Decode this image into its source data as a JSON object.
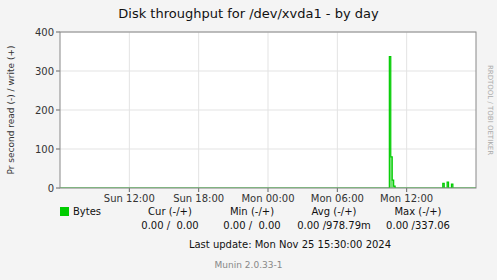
{
  "chart_data": {
    "type": "area",
    "title": "Disk throughput for /dev/xvda1 - by day",
    "y_label": "Pr second read (-) / write (+)",
    "x": [
      0,
      1,
      2,
      3,
      4,
      5,
      6,
      7,
      8,
      9,
      10,
      11,
      12,
      13,
      14,
      15,
      16,
      17,
      18,
      19,
      20,
      21,
      22,
      23,
      24,
      25,
      26,
      27,
      28,
      29,
      30,
      31,
      32,
      33,
      34,
      35,
      36,
      37,
      38,
      39,
      40,
      41,
      42,
      43,
      44,
      45,
      46,
      47,
      48,
      49,
      50,
      51,
      52,
      53,
      54,
      55,
      56,
      57,
      58,
      59,
      60,
      61,
      62,
      63,
      64,
      65,
      66,
      67,
      68,
      69,
      70,
      71,
      72,
      73,
      74,
      75,
      76,
      77,
      78,
      79,
      80,
      81,
      82,
      83,
      84,
      85,
      86,
      87,
      88,
      89,
      90,
      91,
      92,
      93,
      94,
      95,
      96,
      97,
      98,
      99,
      100,
      101,
      102,
      103,
      104,
      105,
      106,
      107,
      108,
      109,
      110,
      111,
      112,
      113,
      114,
      115,
      116,
      117,
      118,
      119,
      120,
      121,
      122,
      123,
      124,
      125,
      126,
      127,
      128,
      129,
      130,
      131,
      132,
      133,
      134,
      135,
      136,
      137,
      138,
      139,
      140,
      141,
      142,
      143,
      144,
      145,
      146,
      147,
      148,
      149,
      150,
      151,
      152,
      153,
      154,
      155,
      156,
      157,
      158,
      159,
      160,
      161,
      162,
      163,
      164,
      165,
      166,
      167,
      168,
      169,
      170,
      171,
      172,
      173,
      174,
      175,
      176,
      177,
      178,
      179,
      180,
      181,
      182,
      183,
      184,
      185,
      186,
      187,
      188,
      189,
      190,
      191,
      192,
      193,
      194,
      195,
      196,
      197,
      198,
      199,
      200,
      201,
      202,
      203,
      204,
      205,
      206,
      207,
      208,
      209,
      210,
      211,
      212,
      213,
      214,
      215,
      216,
      217,
      218,
      219,
      220,
      221,
      222,
      223,
      224,
      225,
      226,
      227,
      228,
      229,
      230,
      231,
      232,
      233,
      234,
      235,
      236,
      237,
      238,
      239,
      240,
      241,
      242,
      243,
      244,
      245,
      246,
      247,
      248,
      249,
      250,
      251,
      252,
      253,
      254,
      255,
      256,
      257,
      258,
      259,
      260,
      261,
      262,
      263,
      264,
      265,
      266,
      267,
      268,
      269,
      270,
      271,
      272,
      273,
      274,
      275,
      276,
      277,
      278,
      279,
      280,
      281,
      282,
      283,
      284,
      285,
      286,
      287,
      288
    ],
    "series": [
      {
        "name": "Bytes",
        "color": "#00CC00",
        "values": [
          0,
          0,
          0,
          0,
          0,
          0,
          0,
          0,
          0,
          0,
          0,
          0,
          0,
          0,
          0,
          0,
          0,
          0,
          0,
          0,
          0,
          0,
          0,
          0,
          0,
          0,
          0,
          0,
          0,
          0,
          0,
          0,
          0,
          0,
          0,
          0,
          0,
          0,
          0,
          0,
          0,
          0,
          0,
          0,
          0,
          0,
          0,
          0,
          0,
          0,
          0,
          0,
          0,
          0,
          0,
          0,
          0,
          0,
          0,
          0,
          0,
          0,
          0,
          0,
          0,
          0,
          0,
          0,
          0,
          0,
          0,
          0,
          0,
          0,
          0,
          0,
          0,
          0,
          0,
          0,
          0,
          0,
          0,
          0,
          0,
          0,
          0,
          0,
          0,
          0,
          0,
          0,
          0,
          0,
          0,
          0,
          0,
          0,
          0,
          0,
          0,
          0,
          0,
          0,
          0,
          0,
          0,
          0,
          0,
          0,
          0,
          0,
          0,
          0,
          0,
          0,
          0,
          0,
          0,
          0,
          0,
          0,
          0,
          0,
          0,
          0,
          0,
          0,
          0,
          0,
          0,
          0,
          0,
          0,
          0,
          0,
          0,
          0,
          0,
          0,
          0,
          0,
          0,
          0,
          0,
          0,
          0,
          0,
          0,
          0,
          0,
          0,
          0,
          0,
          0,
          0,
          0,
          0,
          0,
          0,
          0,
          0,
          0,
          0,
          0,
          0,
          0,
          0,
          0,
          0,
          0,
          0,
          0,
          0,
          0,
          0,
          0,
          0,
          0,
          0,
          0,
          0,
          0,
          0,
          0,
          0,
          0,
          0,
          0,
          0,
          0,
          0,
          0,
          0,
          0,
          0,
          0,
          0,
          0,
          0,
          0,
          0,
          0,
          0,
          0,
          0,
          0,
          0,
          0,
          0,
          0,
          0,
          0,
          0,
          0,
          0,
          0,
          0,
          0,
          0,
          0,
          0,
          0,
          0,
          0,
          0,
          0,
          0,
          337,
          80,
          20,
          5,
          0,
          0,
          0,
          0,
          0,
          0,
          0,
          0,
          0,
          0,
          0,
          0,
          0,
          0,
          0,
          0,
          0,
          0,
          0,
          0,
          0,
          0,
          0,
          0,
          0,
          0,
          0,
          0,
          0,
          0,
          0,
          0,
          0,
          12,
          0,
          0,
          15,
          0,
          0,
          10,
          0,
          0,
          0,
          0,
          0,
          0,
          0,
          0,
          0,
          0,
          0,
          0,
          0,
          0,
          0,
          0,
          0
        ]
      }
    ],
    "xlim": [
      0,
      288
    ],
    "xticks": [
      {
        "value": 48,
        "label": "Sun 12:00"
      },
      {
        "value": 96,
        "label": "Sun 18:00"
      },
      {
        "value": 144,
        "label": "Mon 00:00"
      },
      {
        "value": 192,
        "label": "Mon 06:00"
      },
      {
        "value": 240,
        "label": "Mon 12:00"
      }
    ],
    "ylim": [
      0,
      400
    ],
    "yticks": [
      0,
      100,
      200,
      300,
      400
    ],
    "grid": true,
    "legend": "bottom left",
    "annotations": [
      "RRDTOOL / TOBI OETIKER",
      "Cur (-/+)",
      "Min (-/+)",
      "Avg (-/+)",
      "Max (-/+)",
      "0.00 /  0.00",
      "0.00 /  0.00",
      "0.00 /978.79m",
      "0.00 /337.06",
      "Last update: Mon Nov 25 15:30:00 2024",
      "Munin 2.0.33-1"
    ]
  }
}
